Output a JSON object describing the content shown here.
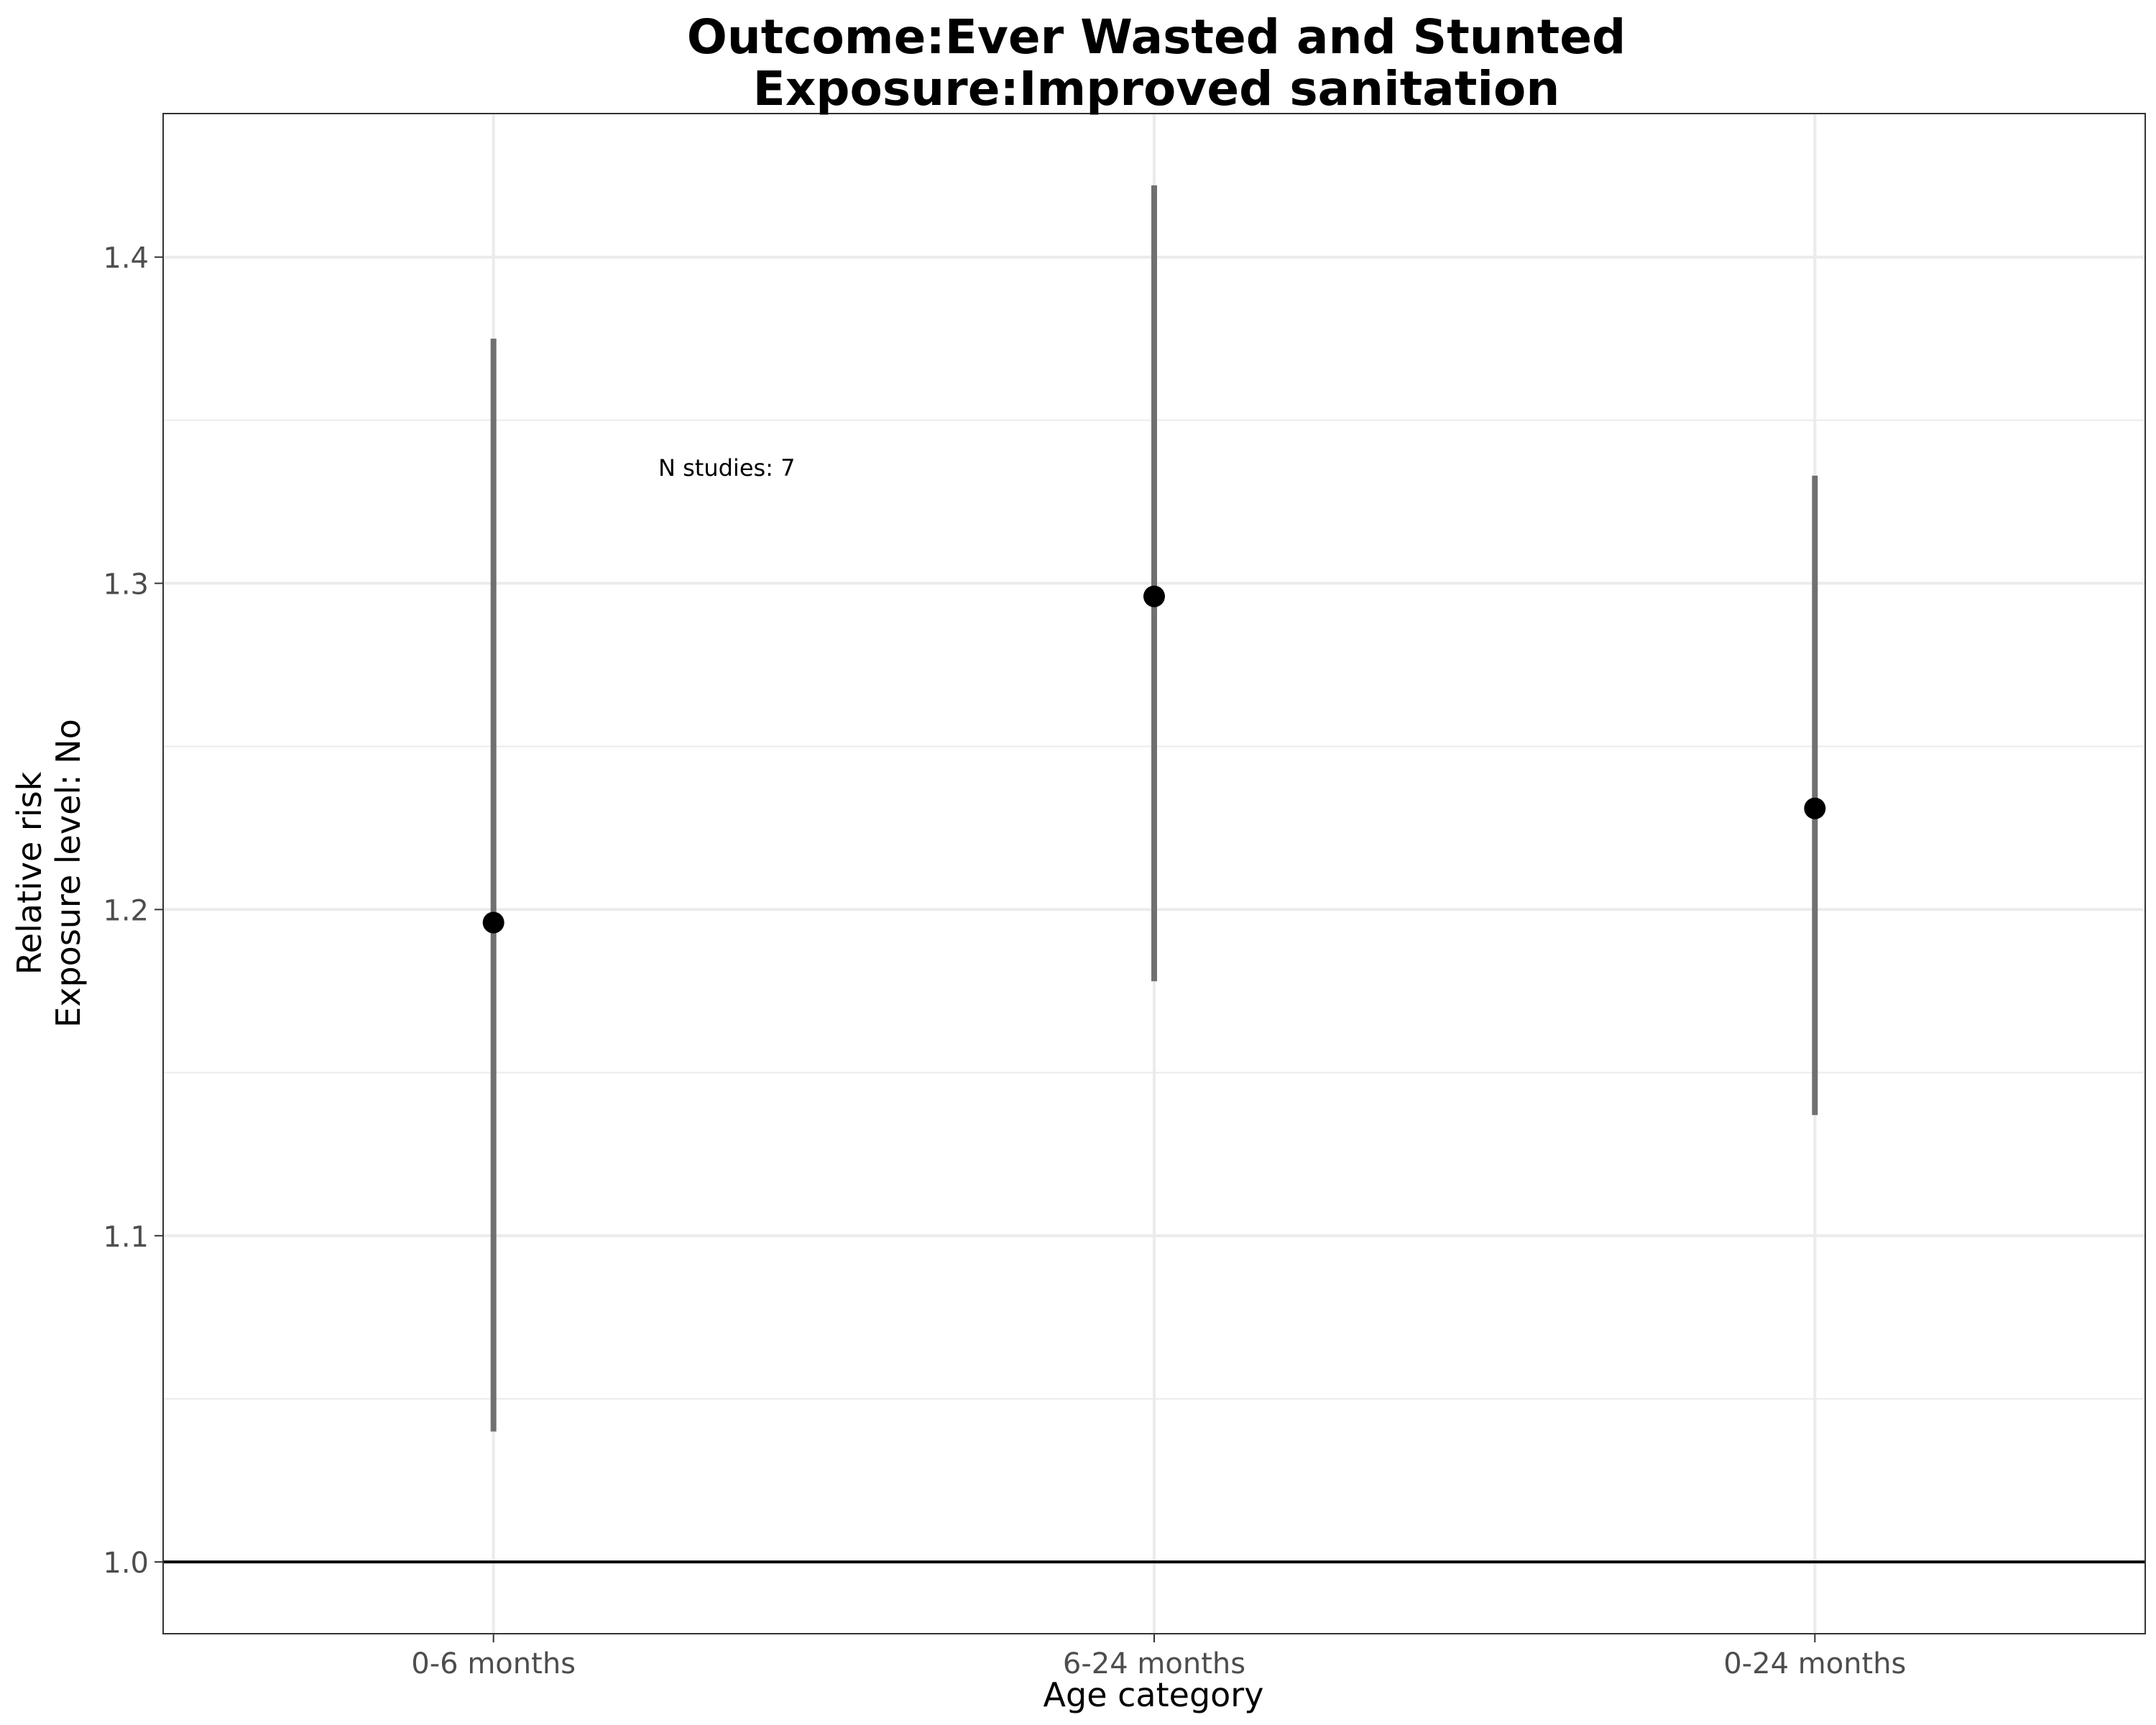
{
  "chart_data": {
    "type": "scatter",
    "title": "Outcome:Ever Wasted and Stunted",
    "subtitle": "Exposure:Improved sanitation",
    "xlabel": "Age category",
    "ylabel": "Relative risk",
    "ylabel2": "Exposure level: No",
    "categories": [
      "0-6 months",
      "6-24 months",
      "0-24 months"
    ],
    "estimates": [
      1.196,
      1.296,
      1.231
    ],
    "ci_lower": [
      1.04,
      1.178,
      1.137
    ],
    "ci_upper": [
      1.375,
      1.422,
      1.333
    ],
    "reference_line": 1.0,
    "ylim": [
      0.978,
      1.444
    ],
    "yticks": [
      "1.0",
      "1.1",
      "1.2",
      "1.3",
      "1.4"
    ],
    "annotation": "N studies: 7",
    "grid": true,
    "colors": {
      "point": "#000000",
      "errorbar": "#707070",
      "grid": "#ebebeb",
      "reference": "#000000"
    }
  }
}
